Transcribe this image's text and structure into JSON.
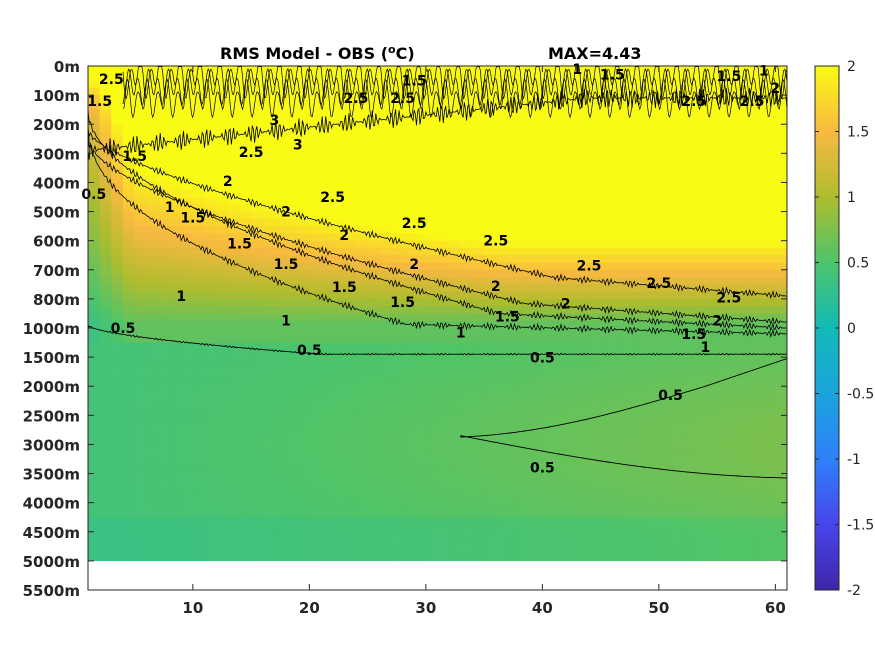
{
  "chart_data": {
    "type": "heatmap",
    "title": "RMS Model - OBS (",
    "title_unit_sup": "o",
    "title_unit_end": "C)",
    "max_label": "MAX=4.43",
    "x_ticks": [
      10,
      20,
      30,
      40,
      50,
      60
    ],
    "xlim": [
      1,
      61
    ],
    "y_ticks": [
      "0m",
      "100m",
      "200m",
      "300m",
      "400m",
      "500m",
      "600m",
      "700m",
      "800m",
      "1000m",
      "1500m",
      "2000m",
      "2500m",
      "3000m",
      "3500m",
      "4000m",
      "4500m",
      "5000m",
      "5500m"
    ],
    "colorbar": {
      "range": [
        -2,
        2
      ],
      "ticks": [
        "2",
        "1.5",
        "1",
        "0.5",
        "0",
        "-0.5",
        "-1",
        "-1.5",
        "-2"
      ]
    },
    "contour_levels": [
      0.5,
      1,
      1.5,
      2,
      2.5,
      3
    ],
    "contour_labels": [
      {
        "text": "2.5",
        "x": 3,
        "d": 0.45
      },
      {
        "text": "1.5",
        "x": 2,
        "d": 1.2
      },
      {
        "text": "0.5",
        "x": 1.5,
        "d": 4.4
      },
      {
        "text": "1.5",
        "x": 29,
        "d": 0.5
      },
      {
        "text": "1",
        "x": 43,
        "d": 0.1
      },
      {
        "text": "1.5",
        "x": 46,
        "d": 0.3
      },
      {
        "text": "1.5",
        "x": 56,
        "d": 0.35
      },
      {
        "text": "1",
        "x": 59,
        "d": 0.15
      },
      {
        "text": "2",
        "x": 60,
        "d": 0.75
      },
      {
        "text": "2.5",
        "x": 24,
        "d": 1.1
      },
      {
        "text": "2.5",
        "x": 28,
        "d": 1.1
      },
      {
        "text": "2.5",
        "x": 53,
        "d": 1.2
      },
      {
        "text": "2.5",
        "x": 58,
        "d": 1.2
      },
      {
        "text": "3",
        "x": 17,
        "d": 1.85
      },
      {
        "text": "3",
        "x": 19,
        "d": 2.7
      },
      {
        "text": "2.5",
        "x": 15,
        "d": 2.95
      },
      {
        "text": "2",
        "x": 13,
        "d": 3.95
      },
      {
        "text": "2.5",
        "x": 22,
        "d": 4.5
      },
      {
        "text": "2.5",
        "x": 29,
        "d": 5.4
      },
      {
        "text": "2.5",
        "x": 36,
        "d": 6.0
      },
      {
        "text": "2.5",
        "x": 44,
        "d": 6.85
      },
      {
        "text": "2.5",
        "x": 50,
        "d": 7.45
      },
      {
        "text": "2.5",
        "x": 56,
        "d": 7.95
      },
      {
        "text": "1.5",
        "x": 5,
        "d": 3.1
      },
      {
        "text": "1",
        "x": 8,
        "d": 4.85
      },
      {
        "text": "1.5",
        "x": 10,
        "d": 5.2
      },
      {
        "text": "1.5",
        "x": 14,
        "d": 6.1
      },
      {
        "text": "1.5",
        "x": 18,
        "d": 6.8
      },
      {
        "text": "1.5",
        "x": 23,
        "d": 7.6
      },
      {
        "text": "1.5",
        "x": 28,
        "d": 8.1
      },
      {
        "text": "2",
        "x": 18,
        "d": 5.0
      },
      {
        "text": "2",
        "x": 23,
        "d": 5.8
      },
      {
        "text": "2",
        "x": 29,
        "d": 6.8
      },
      {
        "text": "2",
        "x": 36,
        "d": 7.55
      },
      {
        "text": "2",
        "x": 42,
        "d": 8.15
      },
      {
        "text": "2",
        "x": 55,
        "d": 8.75
      },
      {
        "text": "1",
        "x": 9,
        "d": 7.9
      },
      {
        "text": "1",
        "x": 18,
        "d": 8.75
      },
      {
        "text": "1",
        "x": 33,
        "d": 9.15
      },
      {
        "text": "1.5",
        "x": 37,
        "d": 8.6
      },
      {
        "text": "1.5",
        "x": 53,
        "d": 9.2
      },
      {
        "text": "1",
        "x": 54,
        "d": 9.65
      },
      {
        "text": "0.5",
        "x": 4,
        "d": 9.0
      },
      {
        "text": "0.5",
        "x": 20,
        "d": 9.75
      },
      {
        "text": "0.5",
        "x": 40,
        "d": 10.02
      },
      {
        "text": "0.5",
        "x": 51,
        "d": 11.3
      },
      {
        "text": "0.5",
        "x": 40,
        "d": 13.8
      }
    ]
  }
}
